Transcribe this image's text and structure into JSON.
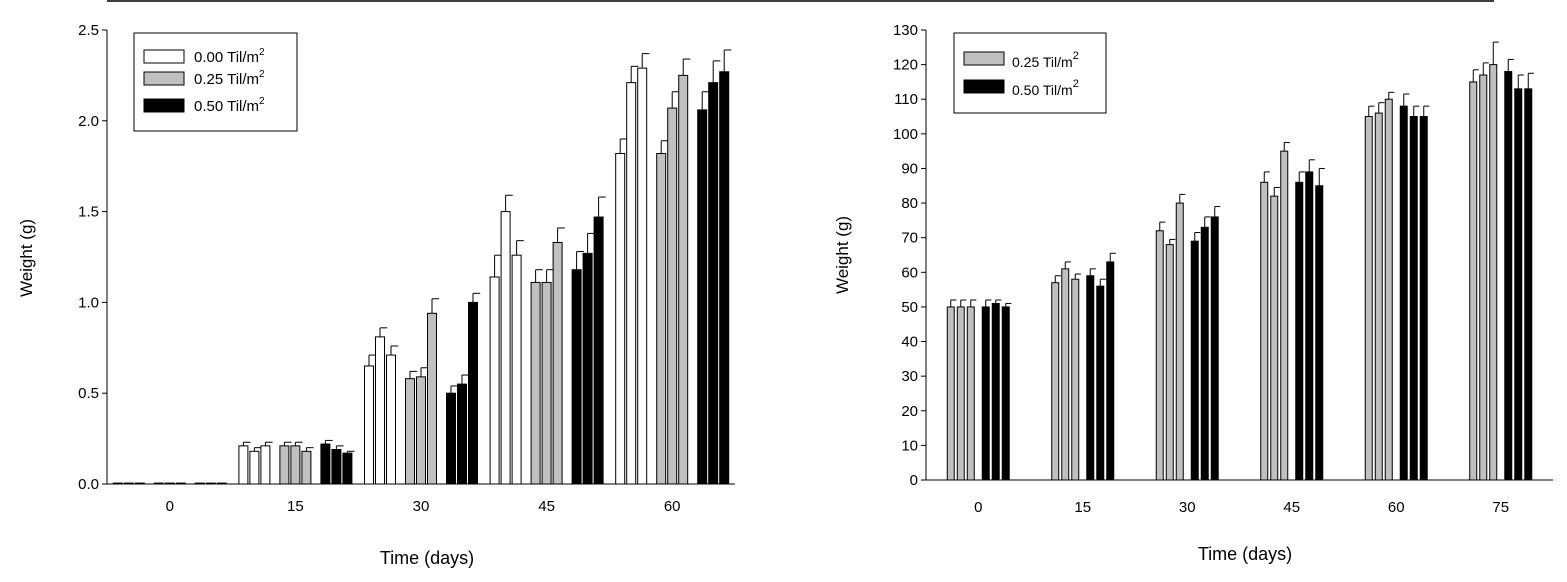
{
  "chart_data": [
    {
      "type": "bar",
      "title": "",
      "xlabel": "Time (days)",
      "ylabel": "Weight (g)",
      "ylim": [
        0,
        2.5
      ],
      "yticks": [
        "0.0",
        "0.5",
        "1.0",
        "1.5",
        "2.0",
        "2.5"
      ],
      "categories": [
        "0",
        "15",
        "30",
        "45",
        "60"
      ],
      "legend": {
        "position": "top-left",
        "entries": [
          {
            "series": "0.00 Til/m",
            "sup": "2",
            "color": "#ffffff"
          },
          {
            "series": "0.25 Til/m",
            "sup": "2",
            "color": "#c0c0c0"
          },
          {
            "series": "0.50  Til/m",
            "sup": "2",
            "color": "#000000"
          }
        ]
      },
      "series": [
        {
          "name": "0.00 Til/m2",
          "color": "#ffffff",
          "values": [
            [
              0.005,
              0.005,
              0.005
            ],
            [
              0.21,
              0.18,
              0.21
            ],
            [
              0.65,
              0.81,
              0.71
            ],
            [
              1.14,
              1.5,
              1.26
            ],
            [
              1.82,
              2.21,
              2.29
            ]
          ],
          "errors": [
            [
              0,
              0,
              0
            ],
            [
              0.02,
              0.02,
              0.02
            ],
            [
              0.06,
              0.05,
              0.05
            ],
            [
              0.12,
              0.09,
              0.08
            ],
            [
              0.08,
              0.09,
              0.08
            ]
          ]
        },
        {
          "name": "0.25 Til/m2",
          "color": "#c0c0c0",
          "values": [
            [
              0.005,
              0.005,
              0.005
            ],
            [
              0.21,
              0.21,
              0.18
            ],
            [
              0.58,
              0.59,
              0.94
            ],
            [
              1.11,
              1.11,
              1.33
            ],
            [
              1.82,
              2.07,
              2.25
            ]
          ],
          "errors": [
            [
              0,
              0,
              0
            ],
            [
              0.02,
              0.02,
              0.02
            ],
            [
              0.04,
              0.05,
              0.08
            ],
            [
              0.07,
              0.07,
              0.08
            ],
            [
              0.07,
              0.09,
              0.09
            ]
          ]
        },
        {
          "name": "0.50 Til/m2",
          "color": "#000000",
          "values": [
            [
              0.005,
              0.005,
              0.005
            ],
            [
              0.22,
              0.19,
              0.17
            ],
            [
              0.5,
              0.55,
              1.0
            ],
            [
              1.18,
              1.27,
              1.47
            ],
            [
              2.06,
              2.21,
              2.27
            ]
          ],
          "errors": [
            [
              0,
              0,
              0
            ],
            [
              0.02,
              0.02,
              0.01
            ],
            [
              0.04,
              0.05,
              0.05
            ],
            [
              0.1,
              0.11,
              0.11
            ],
            [
              0.1,
              0.12,
              0.12
            ]
          ]
        }
      ]
    },
    {
      "type": "bar",
      "title": "",
      "xlabel": "Time (days)",
      "ylabel": "Weight (g)",
      "ylim": [
        0,
        130
      ],
      "yticks": [
        "0",
        "10",
        "20",
        "30",
        "40",
        "50",
        "60",
        "70",
        "80",
        "90",
        "100",
        "110",
        "120",
        "130"
      ],
      "categories": [
        "0",
        "15",
        "30",
        "45",
        "60",
        "75"
      ],
      "legend": {
        "position": "top-left",
        "entries": [
          {
            "series": "0.25 Til/m",
            "sup": "2",
            "color": "#c0c0c0"
          },
          {
            "series": "0.50 Til/m",
            "sup": "2",
            "color": "#000000"
          }
        ]
      },
      "series": [
        {
          "name": "0.25 Til/m2",
          "color": "#c0c0c0",
          "values": [
            [
              50,
              50,
              50
            ],
            [
              57,
              61,
              58
            ],
            [
              72,
              68,
              80
            ],
            [
              86,
              82,
              95
            ],
            [
              105,
              106,
              110
            ],
            [
              115,
              117,
              120
            ]
          ],
          "errors": [
            [
              2,
              2,
              2
            ],
            [
              2,
              2,
              1.5
            ],
            [
              2.5,
              1.5,
              2.5
            ],
            [
              3,
              2.5,
              2.5
            ],
            [
              3,
              3,
              2
            ],
            [
              3.5,
              3.5,
              6.5
            ]
          ]
        },
        {
          "name": "0.50 Til/m2",
          "color": "#000000",
          "values": [
            [
              50,
              51,
              50
            ],
            [
              59,
              56,
              63
            ],
            [
              69,
              73,
              76
            ],
            [
              86,
              89,
              85
            ],
            [
              108,
              105,
              105
            ],
            [
              118,
              113,
              113
            ]
          ],
          "errors": [
            [
              2,
              1,
              1
            ],
            [
              2,
              2,
              2.5
            ],
            [
              2.5,
              3,
              3
            ],
            [
              3,
              3.5,
              5
            ],
            [
              3.5,
              3,
              3
            ],
            [
              3.5,
              4,
              4.5
            ]
          ]
        }
      ]
    }
  ]
}
